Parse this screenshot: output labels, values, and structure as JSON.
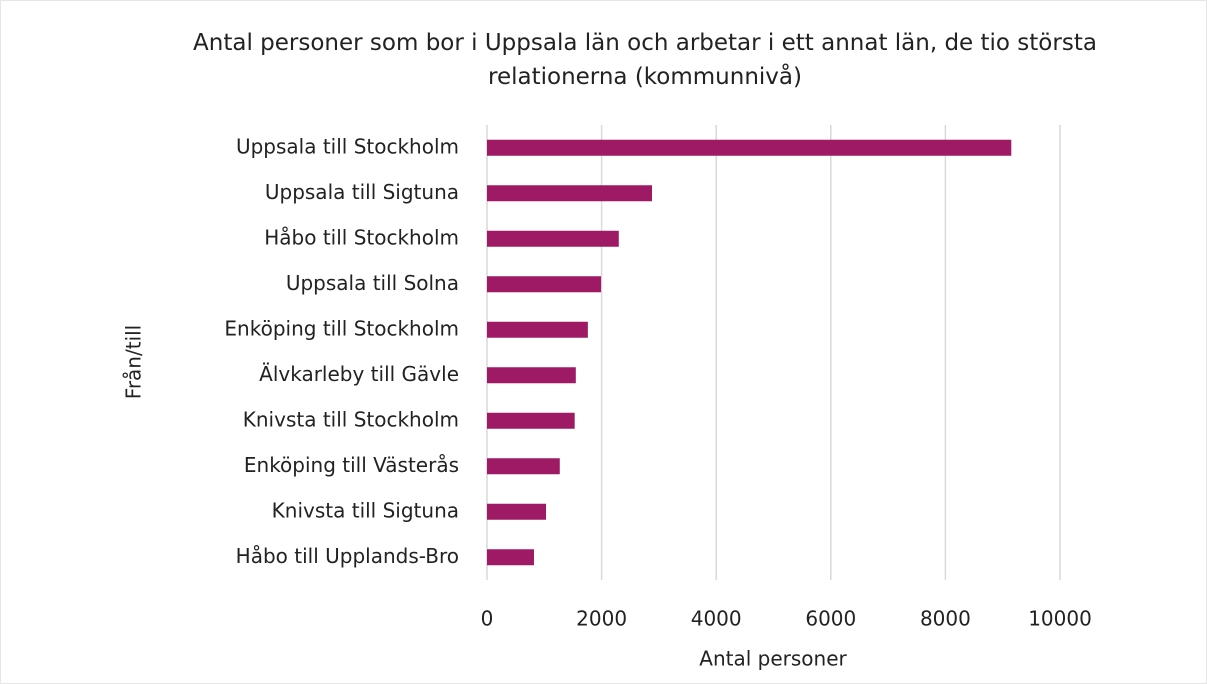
{
  "chart_data": {
    "type": "bar",
    "orientation": "horizontal",
    "title": "Antal personer som bor i Uppsala län och arbetar i ett annat län, de tio största relationerna (kommunnivå)",
    "xlabel": "Antal personer",
    "ylabel": "Från/till",
    "categories": [
      "Uppsala till Stockholm",
      "Uppsala till Sigtuna",
      "Håbo till Stockholm",
      "Uppsala till Solna",
      "Enköping till Stockholm",
      "Älvkarleby till Gävle",
      "Knivsta till Stockholm",
      "Enköping till Västerås",
      "Knivsta till Sigtuna",
      "Håbo till Upplands-Bro"
    ],
    "values": [
      9150,
      2880,
      2300,
      1990,
      1760,
      1550,
      1530,
      1270,
      1030,
      820
    ],
    "color": "#9e1a64",
    "xlim": [
      0,
      10000
    ],
    "xticks": [
      0,
      2000,
      4000,
      6000,
      8000,
      10000
    ],
    "grid": true
  }
}
